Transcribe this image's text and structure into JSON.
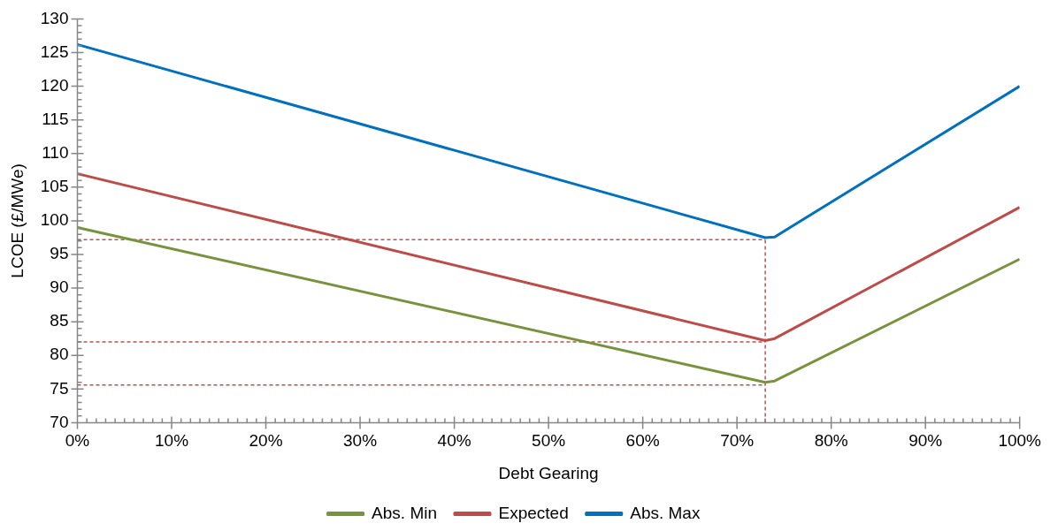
{
  "chart_data": {
    "type": "line",
    "xlabel": "Debt Gearing",
    "ylabel": "LCOE (£/MWe)",
    "xlim": [
      0,
      100
    ],
    "xticks": [
      {
        "value": 0,
        "label": "0%"
      },
      {
        "value": 1,
        "label": null
      },
      {
        "value": 2,
        "label": null
      },
      {
        "value": 3,
        "label": null
      },
      {
        "value": 4,
        "label": null
      },
      {
        "value": 5,
        "label": null
      },
      {
        "value": 6,
        "label": null
      },
      {
        "value": 7,
        "label": null
      },
      {
        "value": 8,
        "label": null
      },
      {
        "value": 9,
        "label": null
      },
      {
        "value": 10,
        "label": "10%"
      },
      {
        "value": 11,
        "label": null
      },
      {
        "value": 12,
        "label": null
      },
      {
        "value": 13,
        "label": null
      },
      {
        "value": 14,
        "label": null
      },
      {
        "value": 15,
        "label": null
      },
      {
        "value": 16,
        "label": null
      },
      {
        "value": 17,
        "label": null
      },
      {
        "value": 18,
        "label": null
      },
      {
        "value": 19,
        "label": null
      },
      {
        "value": 20,
        "label": "20%"
      },
      {
        "value": 21,
        "label": null
      },
      {
        "value": 22,
        "label": null
      },
      {
        "value": 23,
        "label": null
      },
      {
        "value": 24,
        "label": null
      },
      {
        "value": 25,
        "label": null
      },
      {
        "value": 26,
        "label": null
      },
      {
        "value": 27,
        "label": null
      },
      {
        "value": 28,
        "label": null
      },
      {
        "value": 29,
        "label": null
      },
      {
        "value": 30,
        "label": "30%"
      },
      {
        "value": 31,
        "label": null
      },
      {
        "value": 32,
        "label": null
      },
      {
        "value": 33,
        "label": null
      },
      {
        "value": 34,
        "label": null
      },
      {
        "value": 35,
        "label": null
      },
      {
        "value": 36,
        "label": null
      },
      {
        "value": 37,
        "label": null
      },
      {
        "value": 38,
        "label": null
      },
      {
        "value": 39,
        "label": null
      },
      {
        "value": 40,
        "label": "40%"
      },
      {
        "value": 41,
        "label": null
      },
      {
        "value": 42,
        "label": null
      },
      {
        "value": 43,
        "label": null
      },
      {
        "value": 44,
        "label": null
      },
      {
        "value": 45,
        "label": null
      },
      {
        "value": 46,
        "label": null
      },
      {
        "value": 47,
        "label": null
      },
      {
        "value": 48,
        "label": null
      },
      {
        "value": 49,
        "label": null
      },
      {
        "value": 50,
        "label": "50%"
      },
      {
        "value": 51,
        "label": null
      },
      {
        "value": 52,
        "label": null
      },
      {
        "value": 53,
        "label": null
      },
      {
        "value": 54,
        "label": null
      },
      {
        "value": 55,
        "label": null
      },
      {
        "value": 56,
        "label": null
      },
      {
        "value": 57,
        "label": null
      },
      {
        "value": 58,
        "label": null
      },
      {
        "value": 59,
        "label": null
      },
      {
        "value": 60,
        "label": "60%"
      },
      {
        "value": 61,
        "label": null
      },
      {
        "value": 62,
        "label": null
      },
      {
        "value": 63,
        "label": null
      },
      {
        "value": 64,
        "label": null
      },
      {
        "value": 65,
        "label": null
      },
      {
        "value": 66,
        "label": null
      },
      {
        "value": 67,
        "label": null
      },
      {
        "value": 68,
        "label": null
      },
      {
        "value": 69,
        "label": null
      },
      {
        "value": 70,
        "label": "70%"
      },
      {
        "value": 71,
        "label": null
      },
      {
        "value": 72,
        "label": null
      },
      {
        "value": 73,
        "label": null
      },
      {
        "value": 74,
        "label": null
      },
      {
        "value": 75,
        "label": null
      },
      {
        "value": 76,
        "label": null
      },
      {
        "value": 77,
        "label": null
      },
      {
        "value": 78,
        "label": null
      },
      {
        "value": 79,
        "label": null
      },
      {
        "value": 80,
        "label": "80%"
      },
      {
        "value": 81,
        "label": null
      },
      {
        "value": 82,
        "label": null
      },
      {
        "value": 83,
        "label": null
      },
      {
        "value": 84,
        "label": null
      },
      {
        "value": 85,
        "label": null
      },
      {
        "value": 86,
        "label": null
      },
      {
        "value": 87,
        "label": null
      },
      {
        "value": 88,
        "label": null
      },
      {
        "value": 89,
        "label": null
      },
      {
        "value": 90,
        "label": "90%"
      },
      {
        "value": 91,
        "label": null
      },
      {
        "value": 92,
        "label": null
      },
      {
        "value": 93,
        "label": null
      },
      {
        "value": 94,
        "label": null
      },
      {
        "value": 95,
        "label": null
      },
      {
        "value": 96,
        "label": null
      },
      {
        "value": 97,
        "label": null
      },
      {
        "value": 98,
        "label": null
      },
      {
        "value": 99,
        "label": null
      },
      {
        "value": 100,
        "label": "100%"
      }
    ],
    "ylim": [
      70,
      130
    ],
    "yticks": [
      70,
      {
        "value": 71,
        "label": null
      },
      {
        "value": 72,
        "label": null
      },
      {
        "value": 73,
        "label": null
      },
      {
        "value": 74,
        "label": null
      },
      75,
      {
        "value": 76,
        "label": null
      },
      {
        "value": 77,
        "label": null
      },
      {
        "value": 78,
        "label": null
      },
      {
        "value": 79,
        "label": null
      },
      80,
      {
        "value": 81,
        "label": null
      },
      {
        "value": 82,
        "label": null
      },
      {
        "value": 83,
        "label": null
      },
      {
        "value": 84,
        "label": null
      },
      85,
      {
        "value": 86,
        "label": null
      },
      {
        "value": 87,
        "label": null
      },
      {
        "value": 88,
        "label": null
      },
      {
        "value": 89,
        "label": null
      },
      90,
      {
        "value": 91,
        "label": null
      },
      {
        "value": 92,
        "label": null
      },
      {
        "value": 93,
        "label": null
      },
      {
        "value": 94,
        "label": null
      },
      95,
      {
        "value": 96,
        "label": null
      },
      {
        "value": 97,
        "label": null
      },
      {
        "value": 98,
        "label": null
      },
      {
        "value": 99,
        "label": null
      },
      100,
      {
        "value": 101,
        "label": null
      },
      {
        "value": 102,
        "label": null
      },
      {
        "value": 103,
        "label": null
      },
      {
        "value": 104,
        "label": null
      },
      105,
      {
        "value": 106,
        "label": null
      },
      {
        "value": 107,
        "label": null
      },
      {
        "value": 108,
        "label": null
      },
      {
        "value": 109,
        "label": null
      },
      110,
      {
        "value": 111,
        "label": null
      },
      {
        "value": 112,
        "label": null
      },
      {
        "value": 113,
        "label": null
      },
      {
        "value": 114,
        "label": null
      },
      115,
      {
        "value": 116,
        "label": null
      },
      {
        "value": 117,
        "label": null
      },
      {
        "value": 118,
        "label": null
      },
      {
        "value": 119,
        "label": null
      },
      120,
      {
        "value": 121,
        "label": null
      },
      {
        "value": 122,
        "label": null
      },
      {
        "value": 123,
        "label": null
      },
      {
        "value": 124,
        "label": null
      },
      125,
      {
        "value": 126,
        "label": null
      },
      {
        "value": 127,
        "label": null
      },
      {
        "value": 128,
        "label": null
      },
      {
        "value": 129,
        "label": null
      },
      130
    ],
    "grid": false,
    "legend": "bottom",
    "marker": "none",
    "line_style": "solid",
    "series": [
      {
        "name": "Abs. Min",
        "color": "#77933c",
        "x": [
          0,
          73,
          74,
          100
        ],
        "values": [
          99,
          76,
          76.2,
          94.3
        ]
      },
      {
        "name": "Expected",
        "color": "#be4b48",
        "x": [
          0,
          73,
          74,
          100
        ],
        "values": [
          107,
          82.2,
          82.5,
          102
        ]
      },
      {
        "name": "Abs. Max",
        "color": "#0070c0",
        "x": [
          0,
          73,
          74,
          100
        ],
        "values": [
          126.2,
          97.5,
          97.6,
          120
        ]
      },
      {
        "color": "#c0504d",
        "line_style": "dashed",
        "x": [
          0,
          73
        ],
        "values": [
          97.2,
          97.2
        ]
      },
      {
        "color": "#c0504d",
        "line_style": "dashed",
        "x": [
          0,
          73
        ],
        "values": [
          82,
          82
        ]
      },
      {
        "color": "#c0504d",
        "line_style": "dashed",
        "x": [
          0,
          73
        ],
        "values": [
          75.6,
          75.6
        ]
      },
      {
        "color": "#c0504d",
        "line_style": "dashed",
        "x": [
          73,
          73
        ],
        "values": [
          70,
          97.2
        ]
      }
    ]
  }
}
